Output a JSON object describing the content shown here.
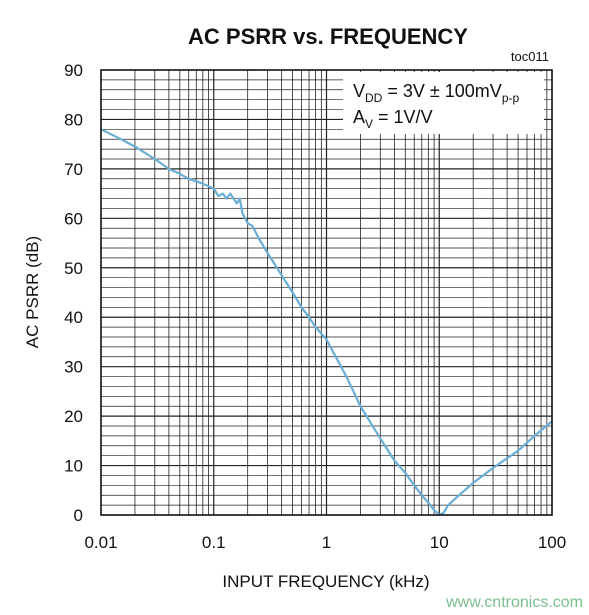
{
  "chart_data": {
    "type": "line",
    "title": "AC PSRR vs. FREQUENCY",
    "code": "toc011",
    "xlabel": "INPUT FREQUENCY (kHz)",
    "ylabel": "AC PSRR (dB)",
    "xscale": "log",
    "xlim": [
      0.01,
      100
    ],
    "ylim": [
      0,
      90
    ],
    "grid": true,
    "x_ticks": [
      0.01,
      0.1,
      1,
      10,
      100
    ],
    "x_tick_labels": [
      "0.01",
      "0.1",
      "1",
      "10",
      "100"
    ],
    "y_ticks": [
      0,
      10,
      20,
      30,
      40,
      50,
      60,
      70,
      80,
      90
    ],
    "y_tick_labels": [
      "0",
      "10",
      "20",
      "30",
      "40",
      "50",
      "60",
      "70",
      "80",
      "90"
    ],
    "line_color": "#6aaed6",
    "annotation": {
      "line1": {
        "main": "V",
        "sub": "DD",
        "rest": " = 3V ± 100mV",
        "sub2": "p-p"
      },
      "line2": {
        "main": "A",
        "sub": "V",
        "rest": " = 1V/V"
      }
    },
    "series": [
      {
        "x": [
          0.01,
          0.015,
          0.02,
          0.03,
          0.04,
          0.05,
          0.06,
          0.07,
          0.08,
          0.09,
          0.1,
          0.11,
          0.12,
          0.13,
          0.14,
          0.15,
          0.16,
          0.17,
          0.18,
          0.2,
          0.22,
          0.25,
          0.3,
          0.4,
          0.5,
          0.6,
          0.7,
          0.8,
          1,
          1.5,
          2,
          3,
          4,
          5,
          6,
          7,
          8,
          9,
          10,
          11,
          12,
          15,
          20,
          30,
          50,
          70,
          100
        ],
        "y": [
          78,
          76,
          74.5,
          72,
          70,
          69,
          68,
          67.5,
          67,
          66.5,
          66,
          64.5,
          65,
          64,
          65,
          64,
          63,
          64,
          61,
          59,
          58.5,
          56,
          53,
          48.5,
          45,
          42,
          40,
          38,
          35.5,
          28,
          22,
          15.5,
          11,
          8.5,
          6,
          4,
          2.5,
          1,
          0,
          0.5,
          2,
          4,
          6.5,
          9.5,
          13,
          16,
          19
        ]
      }
    ]
  },
  "watermark": "www.cntronics.com"
}
